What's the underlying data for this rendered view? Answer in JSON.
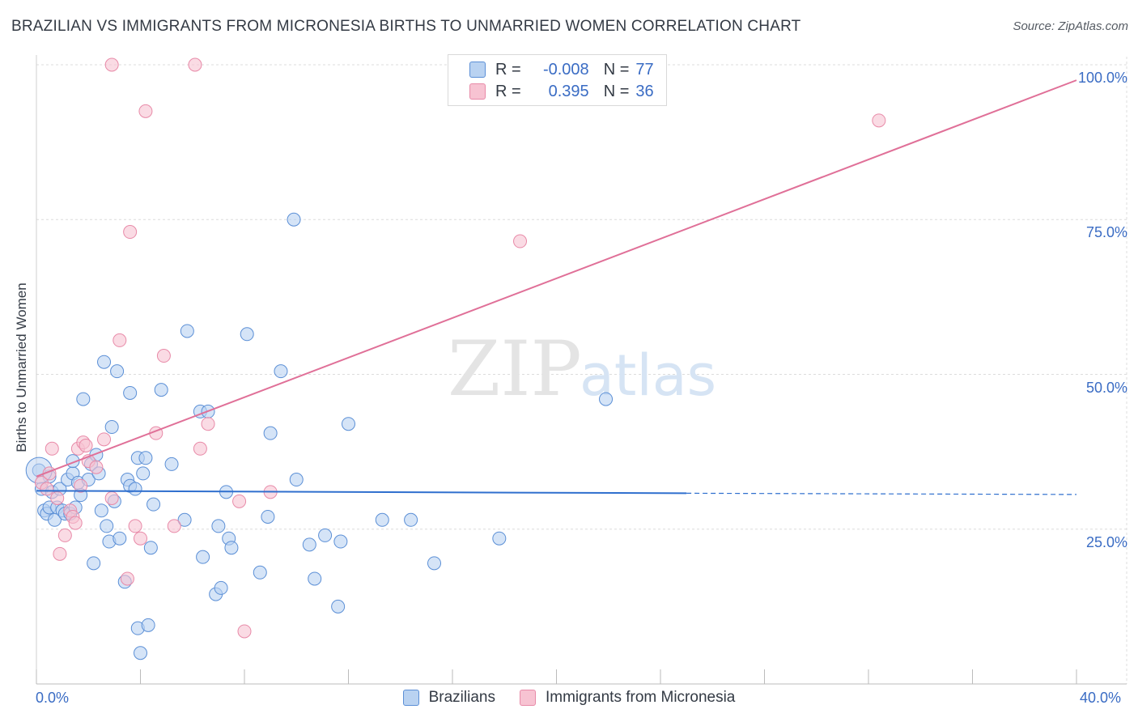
{
  "title": "BRAZILIAN VS IMMIGRANTS FROM MICRONESIA BIRTHS TO UNMARRIED WOMEN CORRELATION CHART",
  "source": "Source: ZipAtlas.com",
  "watermark": {
    "zip": "ZIP",
    "atlas": "atlas"
  },
  "legend": {
    "rows": [
      {
        "r_label": "R =",
        "r_value": "-0.008",
        "n_label": "N =",
        "n_value": "77"
      },
      {
        "r_label": "R =",
        "r_value": "0.395",
        "n_label": "N =",
        "n_value": "36"
      }
    ]
  },
  "colors": {
    "blue_fill": "#b9d2f1",
    "blue_stroke": "#5b8fd6",
    "blue_line": "#2f6fce",
    "pink_fill": "#f7c3d2",
    "pink_stroke": "#e88aa8",
    "pink_line": "#e07098",
    "tick_text": "#3a6cc4"
  },
  "chart_data": {
    "type": "scatter",
    "title": "BRAZILIAN VS IMMIGRANTS FROM MICRONESIA BIRTHS TO UNMARRIED WOMEN CORRELATION CHART",
    "xlabel": "",
    "ylabel": "Births to Unmarried Women",
    "xlim": [
      0,
      40
    ],
    "ylim": [
      0,
      100
    ],
    "x_tick_labels": [
      "0.0%",
      "40.0%"
    ],
    "y_tick_labels": [
      "25.0%",
      "50.0%",
      "75.0%",
      "100.0%"
    ],
    "y_ticks": [
      25,
      50,
      75,
      100
    ],
    "grid": true,
    "legend_position": "top-center",
    "series": [
      {
        "name": "Brazilians",
        "r": -0.008,
        "n": 77,
        "trend": {
          "x0": 0,
          "y0": 31.2,
          "x1": 25,
          "y1": 30.8,
          "dashed_to_x": 40,
          "dashed_y": 30.6
        },
        "points": [
          [
            0.1,
            34.5
          ],
          [
            0.2,
            31.5
          ],
          [
            0.3,
            28
          ],
          [
            0.4,
            27.5
          ],
          [
            0.5,
            33.5
          ],
          [
            0.5,
            28.5
          ],
          [
            0.6,
            31
          ],
          [
            0.7,
            26.5
          ],
          [
            0.8,
            28.5
          ],
          [
            0.9,
            31.5
          ],
          [
            1.0,
            28
          ],
          [
            1.1,
            27.5
          ],
          [
            1.2,
            33
          ],
          [
            1.3,
            27.5
          ],
          [
            1.4,
            34
          ],
          [
            1.4,
            36
          ],
          [
            1.5,
            28.5
          ],
          [
            1.6,
            32.5
          ],
          [
            1.7,
            30.5
          ],
          [
            1.8,
            46
          ],
          [
            2.0,
            33
          ],
          [
            2.1,
            35.5
          ],
          [
            2.2,
            19.5
          ],
          [
            2.3,
            37
          ],
          [
            2.4,
            34
          ],
          [
            2.5,
            28
          ],
          [
            2.6,
            52
          ],
          [
            2.7,
            25.5
          ],
          [
            2.8,
            23
          ],
          [
            2.9,
            41.5
          ],
          [
            3.0,
            29.5
          ],
          [
            3.1,
            50.5
          ],
          [
            3.2,
            23.5
          ],
          [
            3.4,
            16.5
          ],
          [
            3.5,
            33
          ],
          [
            3.6,
            47
          ],
          [
            3.6,
            32
          ],
          [
            3.8,
            31.5
          ],
          [
            3.9,
            9
          ],
          [
            3.9,
            36.5
          ],
          [
            4.0,
            5
          ],
          [
            4.1,
            34
          ],
          [
            4.2,
            36.5
          ],
          [
            4.3,
            9.5
          ],
          [
            4.4,
            22
          ],
          [
            4.5,
            29
          ],
          [
            4.8,
            47.5
          ],
          [
            5.2,
            35.5
          ],
          [
            5.7,
            26.5
          ],
          [
            5.8,
            57
          ],
          [
            6.3,
            44
          ],
          [
            6.4,
            20.5
          ],
          [
            6.6,
            44
          ],
          [
            6.9,
            14.5
          ],
          [
            7.0,
            25.5
          ],
          [
            7.1,
            15.5
          ],
          [
            7.3,
            31
          ],
          [
            7.4,
            23.5
          ],
          [
            7.5,
            22
          ],
          [
            8.1,
            56.5
          ],
          [
            8.6,
            18
          ],
          [
            8.9,
            27
          ],
          [
            9.0,
            40.5
          ],
          [
            9.4,
            50.5
          ],
          [
            9.9,
            75
          ],
          [
            10.0,
            33
          ],
          [
            10.5,
            22.5
          ],
          [
            10.7,
            17
          ],
          [
            11.1,
            24
          ],
          [
            11.6,
            12.5
          ],
          [
            11.7,
            23
          ],
          [
            12.0,
            42
          ],
          [
            13.3,
            26.5
          ],
          [
            14.4,
            26.5
          ],
          [
            15.3,
            19.5
          ],
          [
            17.8,
            23.5
          ],
          [
            21.9,
            46
          ]
        ]
      },
      {
        "name": "Immigrants from Micronesia",
        "r": 0.395,
        "n": 36,
        "trend": {
          "x0": 0,
          "y0": 33.5,
          "x1": 40,
          "y1": 97.5
        },
        "points": [
          [
            0.2,
            32.5
          ],
          [
            0.4,
            31.5
          ],
          [
            0.5,
            34
          ],
          [
            0.6,
            38
          ],
          [
            0.8,
            30
          ],
          [
            0.9,
            21
          ],
          [
            1.1,
            24
          ],
          [
            1.3,
            28
          ],
          [
            1.4,
            27
          ],
          [
            1.5,
            26
          ],
          [
            1.6,
            38
          ],
          [
            1.7,
            32
          ],
          [
            1.8,
            39
          ],
          [
            1.9,
            38.5
          ],
          [
            2.0,
            36
          ],
          [
            2.3,
            35
          ],
          [
            2.6,
            39.5
          ],
          [
            2.9,
            30
          ],
          [
            2.9,
            100
          ],
          [
            3.2,
            55.5
          ],
          [
            3.5,
            17
          ],
          [
            3.6,
            73
          ],
          [
            3.8,
            25.5
          ],
          [
            4.0,
            23.5
          ],
          [
            4.2,
            92.5
          ],
          [
            4.6,
            40.5
          ],
          [
            4.9,
            53
          ],
          [
            5.3,
            25.5
          ],
          [
            6.1,
            100
          ],
          [
            6.3,
            38
          ],
          [
            6.6,
            42
          ],
          [
            7.8,
            29.5
          ],
          [
            8.0,
            8.5
          ],
          [
            9.0,
            31
          ],
          [
            18.6,
            71.5
          ],
          [
            32.4,
            91
          ]
        ]
      }
    ]
  },
  "bottom_legend": [
    "Brazilians",
    "Immigrants from Micronesia"
  ]
}
